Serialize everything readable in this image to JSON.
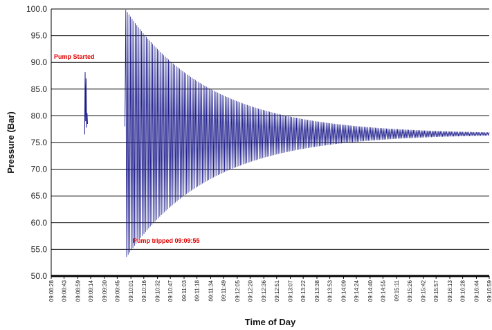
{
  "chart_data": {
    "type": "line",
    "title": "",
    "xlabel": "Time of Day",
    "ylabel": "Pressure (Bar)",
    "ylim": [
      50,
      100
    ],
    "y_ticks": [
      50.0,
      55.0,
      60.0,
      65.0,
      70.0,
      75.0,
      80.0,
      85.0,
      90.0,
      95.0,
      100.0
    ],
    "y_tick_labels": [
      "50.0",
      "55.0",
      "60.0",
      "65.0",
      "70.0",
      "75.0",
      "80.0",
      "85.0",
      "90.0",
      "95.0",
      "100.0"
    ],
    "x_tick_labels": [
      "09:08:28",
      "09:08:43",
      "09:08:59",
      "09:09:14",
      "09:09:30",
      "09:09:45",
      "09:10:01",
      "09:10:16",
      "09:10:32",
      "09:10:47",
      "09:11:03",
      "09:11:18",
      "09:11:34",
      "09:11:49",
      "09:12:05",
      "09:12:20",
      "09:12:36",
      "09:12:51",
      "09:13:07",
      "09:13:22",
      "09:13:38",
      "09:13:53",
      "09:14:09",
      "09:14:24",
      "09:14:40",
      "09:14:55",
      "09:15:11",
      "09:15:26",
      "09:15:42",
      "09:15:57",
      "09:16:13",
      "09:16:28",
      "09:16:44",
      "09:16:59"
    ],
    "grid": true,
    "legend": "none",
    "line_color": "#1c1c8c",
    "series": [
      {
        "name": "",
        "pump_start": {
          "time": "09:09:07",
          "samples": [
            76.5,
            88.2,
            79.0,
            87.0,
            77.8,
            80.5,
            78.5
          ]
        },
        "trip": {
          "time": "09:09:55",
          "steady_value": 76.6,
          "first_peak": 97.5,
          "first_trough": 51.0,
          "end_time": "09:16:59",
          "end_amplitude": 0.3
        }
      }
    ],
    "annotations": [
      {
        "text": "Pump Started",
        "time": "09:08:28",
        "value": 90.7,
        "color": "#e00000"
      },
      {
        "text": "Pump tripped 09:09:55",
        "time": "09:10:00",
        "value": 56.2,
        "color": "#e00000"
      }
    ]
  }
}
